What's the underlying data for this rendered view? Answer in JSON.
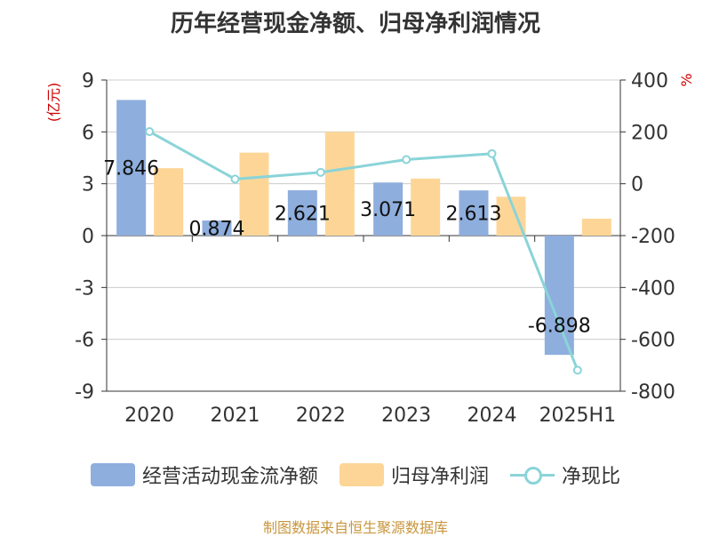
{
  "chart_data": {
    "type": "bar",
    "title": "历年经营现金净额、归母净利润情况",
    "categories": [
      "2020",
      "2021",
      "2022",
      "2023",
      "2024",
      "2025H1"
    ],
    "series": [
      {
        "name": "经营活动现金流净额",
        "type": "bar",
        "axis": "left",
        "color": "#8eaedd",
        "values": [
          7.846,
          0.874,
          2.621,
          3.071,
          2.613,
          -6.898
        ]
      },
      {
        "name": "归母净利润",
        "type": "bar",
        "axis": "left",
        "color": "#fdd697",
        "values": [
          3.9,
          4.8,
          6.0,
          3.3,
          2.25,
          0.98
        ]
      },
      {
        "name": "净现比",
        "type": "line",
        "axis": "right",
        "color": "#8ad4d8",
        "values": [
          201,
          18,
          44,
          93,
          116,
          -719
        ]
      }
    ],
    "data_labels": [
      "7.846",
      "0.874",
      "2.621",
      "3.071",
      "2.613",
      "-6.898"
    ],
    "y_left": {
      "label": "(亿元)",
      "min": -9,
      "max": 9,
      "ticks": [
        {
          "v": 9,
          "t": "9"
        },
        {
          "v": 6,
          "t": "6"
        },
        {
          "v": 3,
          "t": "3"
        },
        {
          "v": 0,
          "t": "0"
        },
        {
          "v": -3,
          "t": "-3"
        },
        {
          "v": -6,
          "t": "-6"
        },
        {
          "v": -9,
          "t": "-9"
        }
      ]
    },
    "y_right": {
      "label": "%",
      "min": -800,
      "max": 400,
      "ticks": [
        {
          "v": 400,
          "t": "400"
        },
        {
          "v": 200,
          "t": "200"
        },
        {
          "v": 0,
          "t": "0"
        },
        {
          "v": -200,
          "t": "-200"
        },
        {
          "v": -400,
          "t": "-400"
        },
        {
          "v": -600,
          "t": "-600"
        },
        {
          "v": -800,
          "t": "-800"
        }
      ]
    },
    "grid": true,
    "legend_position": "bottom"
  },
  "source_text": "制图数据来自恒生聚源数据库"
}
